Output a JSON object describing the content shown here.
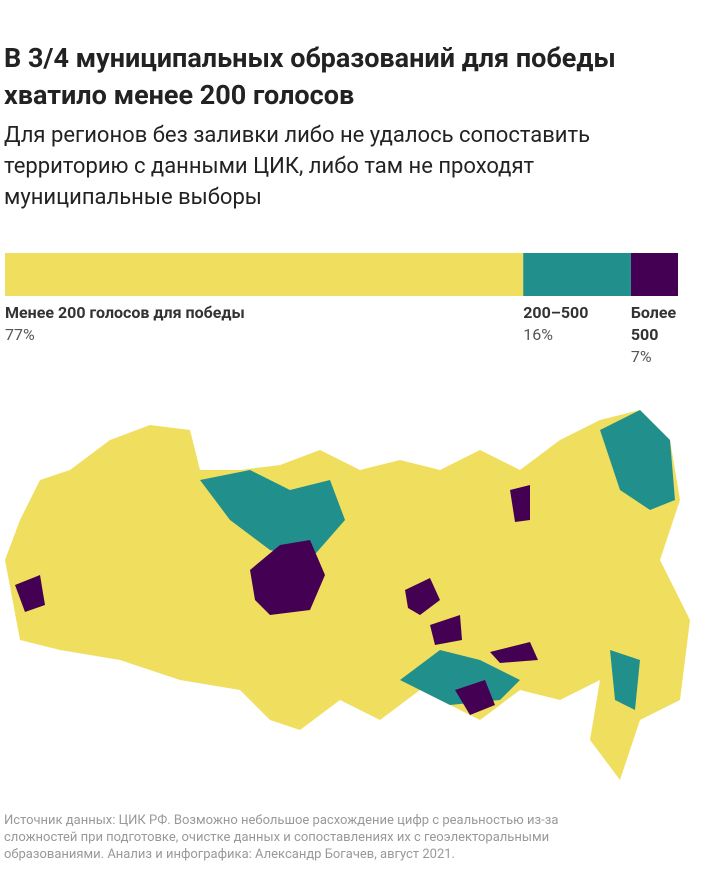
{
  "chart_data": {
    "type": "stacked-bar",
    "title": "В 3/4 муниципальных образований для победы хватило менее 200 голосов",
    "subtitle": "Для регионов без заливки либо не удалось сопоставить территорию с данными ЦИК, либо там не проходят муниципальные выборы",
    "series": [
      {
        "name": "Менее 200 голосов для победы",
        "color": "#f0df5f",
        "values": [
          77
        ],
        "value_labels": [
          "77%"
        ]
      },
      {
        "name": "200–500",
        "color": "#21908d",
        "values": [
          16
        ],
        "value_labels": [
          "16%"
        ]
      },
      {
        "name": "Более 500",
        "color": "#440154",
        "values": [
          7
        ],
        "value_labels": [
          "7%"
        ]
      }
    ],
    "source": "Источник данных: ЦИК РФ. Возможно небольшое расхождение цифр с реальностью из-за сложностей при подготовке, очистке данных и сопоставлениях их с геоэлекторальными образованиями. Анализ и инфографика: Александр Богачев, август 2021."
  }
}
